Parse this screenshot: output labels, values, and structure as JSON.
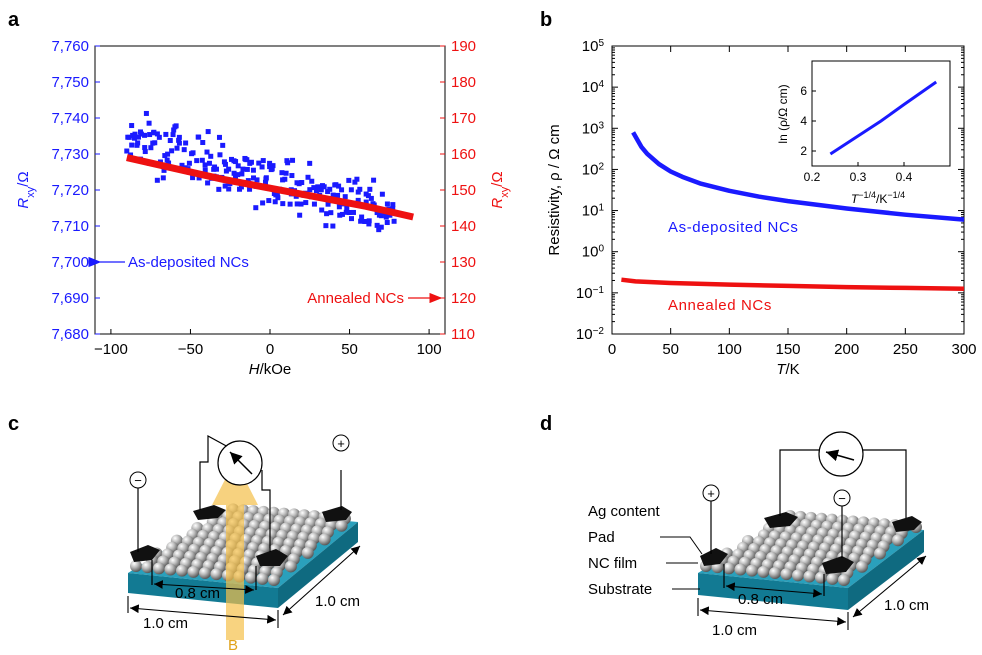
{
  "panels": {
    "a": "a",
    "b": "b",
    "c": "c",
    "d": "d"
  },
  "colors": {
    "blue": "#1a1aff",
    "red": "#ee1111",
    "teal": "#1a8ca6",
    "arrow_yellow": "#f5c04a"
  },
  "chart_data": [
    {
      "id": "a",
      "type": "scatter",
      "xlabel_italic": "H",
      "xlabel_rest": "/kOe",
      "xlim": [
        -110,
        110
      ],
      "x_ticks": [
        -100,
        -50,
        0,
        50,
        100
      ],
      "x_tick_labels": [
        "−100",
        "−50",
        "0",
        "50",
        "100"
      ],
      "left_axis": {
        "label_main": "R",
        "label_sub": "xy",
        "label_rest": "/Ω",
        "ylim": [
          7680,
          7760
        ],
        "ticks": [
          7680,
          7690,
          7700,
          7710,
          7720,
          7730,
          7740,
          7750,
          7760
        ],
        "tick_labels": [
          "7,680",
          "7,690",
          "7,700",
          "7,710",
          "7,720",
          "7,730",
          "7,740",
          "7,750",
          "7,760"
        ]
      },
      "right_axis": {
        "label_main": "R",
        "label_sub": "xy",
        "label_rest": "/Ω",
        "ylim": [
          110,
          190
        ],
        "ticks": [
          110,
          120,
          130,
          140,
          150,
          160,
          170,
          180,
          190
        ],
        "tick_labels": [
          "110",
          "120",
          "130",
          "140",
          "150",
          "160",
          "170",
          "180",
          "190"
        ]
      },
      "series": [
        {
          "name": "As-deposited NCs",
          "axis": "left",
          "trend": {
            "x": [
              -90,
              78
            ],
            "y": [
              7735,
              7713
            ]
          },
          "n_points": 240,
          "scatter_spread": 8
        },
        {
          "name": "Annealed NCs",
          "axis": "right",
          "x": [
            -90,
            -60,
            -30,
            0,
            30,
            60,
            90
          ],
          "y": [
            159,
            156,
            153,
            150.5,
            148,
            145.5,
            142.5
          ]
        }
      ],
      "annotations": [
        {
          "text": "As-deposited NCs",
          "arrow": "left",
          "axis": "left",
          "y": 7700
        },
        {
          "text": "Annealed NCs",
          "arrow": "right",
          "axis": "right",
          "y": 120
        }
      ]
    },
    {
      "id": "b",
      "type": "line",
      "xlabel_italic": "T",
      "xlabel_rest": "/K",
      "ylabel": "Resistivity, ρ / Ω cm",
      "xlim": [
        0,
        300
      ],
      "x_ticks": [
        0,
        50,
        100,
        150,
        200,
        250,
        300
      ],
      "y_scale": "log",
      "ylim_exp": [
        -2,
        5
      ],
      "y_tick_exps": [
        -2,
        -1,
        0,
        1,
        2,
        3,
        4,
        5
      ],
      "series": [
        {
          "name": "As-deposited NCs",
          "x": [
            18,
            25,
            30,
            40,
            50,
            60,
            75,
            100,
            125,
            150,
            200,
            250,
            300
          ],
          "log10_y": [
            2.9,
            2.55,
            2.38,
            2.13,
            1.95,
            1.82,
            1.66,
            1.48,
            1.34,
            1.23,
            1.05,
            0.9,
            0.78
          ]
        },
        {
          "name": "Annealed NCs",
          "x": [
            8,
            20,
            50,
            100,
            150,
            200,
            250,
            300
          ],
          "log10_y": [
            -0.68,
            -0.72,
            -0.76,
            -0.8,
            -0.83,
            -0.86,
            -0.88,
            -0.9
          ]
        }
      ],
      "labels": [
        "As-deposited NCs",
        "Annealed NCs"
      ],
      "inset": {
        "type": "line",
        "xlabel": "T",
        "xlabel_sup1": "−1/4",
        "xlabel_mid": "/K",
        "xlabel_sup2": "−1/4",
        "ylabel": "ln (ρ/Ω cm)",
        "xlim": [
          0.2,
          0.5
        ],
        "x_ticks": [
          0.2,
          0.3,
          0.4
        ],
        "x_tick_labels": [
          "0.2",
          "0.3",
          "0.4"
        ],
        "ylim": [
          1,
          8
        ],
        "y_ticks": [
          2,
          4,
          6
        ],
        "y_tick_labels": [
          "2",
          "4",
          "6"
        ],
        "x": [
          0.24,
          0.3,
          0.35,
          0.4,
          0.47
        ],
        "y": [
          1.8,
          3.0,
          4.0,
          5.1,
          6.6
        ]
      }
    }
  ],
  "diagram_c": {
    "dim_short": "0.8 cm",
    "dim_front": "1.0 cm",
    "dim_side": "1.0 cm",
    "field_label": "B",
    "minus": "−",
    "plus": "+"
  },
  "diagram_d": {
    "labels": [
      "Ag content",
      "Pad",
      "NC film",
      "Substrate"
    ],
    "dim_short": "0.8 cm",
    "dim_front": "1.0 cm",
    "dim_side": "1.0 cm",
    "minus": "−",
    "plus": "+"
  }
}
